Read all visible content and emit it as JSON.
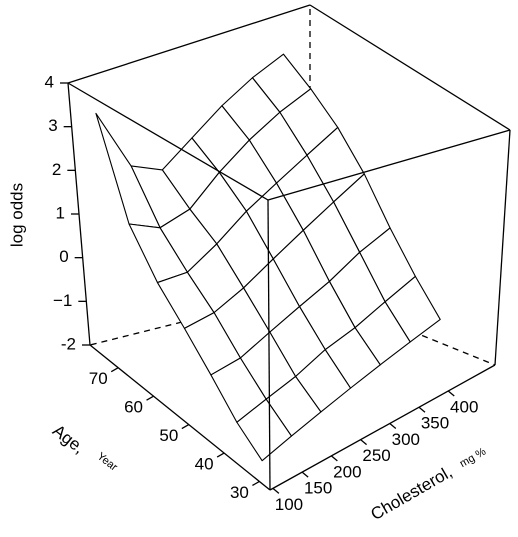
{
  "chart_data": {
    "type": "surface3d",
    "zlabel": "log odds",
    "xlabel": "Age,",
    "xunit": "Year",
    "ylabel": "Cholesterol,",
    "yunit": "mg %",
    "x": [
      30,
      37,
      44,
      51,
      58,
      65,
      72
    ],
    "y": [
      100,
      150,
      200,
      250,
      300,
      350,
      400
    ],
    "z": [
      [
        -1.6,
        -1.4,
        -1.2,
        -1.0,
        -0.8,
        -0.6,
        -0.4
      ],
      [
        -1.2,
        -1.0,
        -0.8,
        -0.5,
        -0.3,
        0.0,
        0.3
      ],
      [
        -0.6,
        -0.5,
        -0.2,
        0.1,
        0.4,
        0.8,
        1.1
      ],
      [
        0.0,
        0.1,
        0.4,
        0.8,
        1.2,
        1.6,
        2.0
      ],
      [
        0.6,
        0.6,
        1.0,
        1.5,
        1.9,
        2.3,
        2.7
      ],
      [
        1.5,
        1.2,
        1.4,
        2.0,
        2.5,
        2.9,
        3.2
      ],
      [
        3.6,
        2.2,
        1.9,
        2.4,
        2.9,
        3.3,
        3.6
      ]
    ],
    "xlim": [
      27,
      78
    ],
    "ylim": [
      95,
      480
    ],
    "zlim": [
      -2,
      4
    ],
    "xticks": [
      30,
      40,
      50,
      60,
      70
    ],
    "yticks": [
      100,
      150,
      200,
      250,
      300,
      350,
      400
    ],
    "zticks": [
      -2,
      {
        "value": -1,
        "label": "−1"
      },
      0,
      1,
      2,
      3,
      4
    ],
    "color": "#000000"
  }
}
